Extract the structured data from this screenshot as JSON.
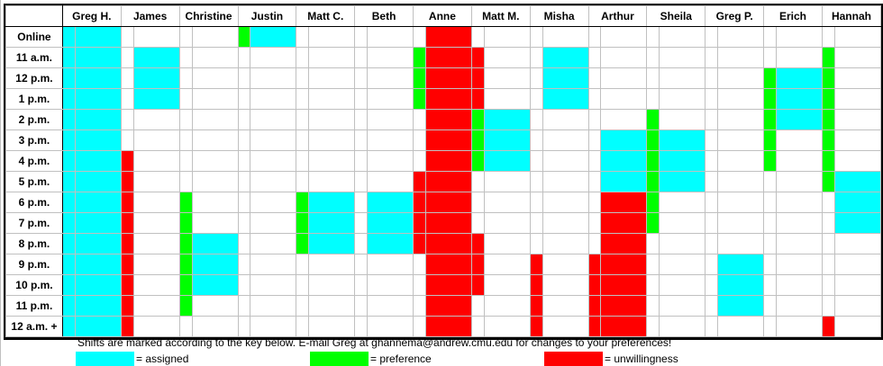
{
  "colors": {
    "assigned": "#00ffff",
    "preference": "#00ff00",
    "unwillingness": "#ff0000"
  },
  "people": [
    "Greg H.",
    "James",
    "Christine",
    "Justin",
    "Matt C.",
    "Beth",
    "Anne",
    "Matt M.",
    "Misha",
    "Arthur",
    "Sheila",
    "Greg P.",
    "Erich",
    "Hannah"
  ],
  "rows": [
    "Online",
    "11 a.m.",
    "12 p.m.",
    "1 p.m.",
    "2 p.m.",
    "3 p.m.",
    "4 p.m.",
    "5 p.m.",
    "6 p.m.",
    "7 p.m.",
    "8 p.m.",
    "9 p.m.",
    "10 p.m.",
    "11 p.m.",
    "12 a.m. +"
  ],
  "cells": {
    "Greg H.": [
      "cc",
      "cc",
      "cc",
      "cc",
      "cc",
      "cc",
      "cc",
      "cc",
      "cc",
      "cc",
      "cc",
      "cc",
      "cc",
      "cc",
      "cc"
    ],
    "James": [
      "..",
      ".c",
      ".c",
      ".c",
      "..",
      "..",
      "r.",
      "r.",
      "r.",
      "r.",
      "r.",
      "r.",
      "r.",
      "r.",
      "r."
    ],
    "Christine": [
      "..",
      "..",
      "..",
      "..",
      "..",
      "..",
      "..",
      "..",
      "g.",
      "g.",
      "gc",
      "gc",
      "gc",
      "g.",
      ".."
    ],
    "Justin": [
      "gc",
      "..",
      "..",
      "..",
      "..",
      "..",
      "..",
      "..",
      "..",
      "..",
      "..",
      "..",
      "..",
      "..",
      ".."
    ],
    "Matt C.": [
      "..",
      "..",
      "..",
      "..",
      "..",
      "..",
      "..",
      "..",
      "gc",
      "gc",
      "gc",
      "..",
      "..",
      "..",
      ".."
    ],
    "Beth": [
      "..",
      "..",
      "..",
      "..",
      "..",
      "..",
      "..",
      "..",
      ".c",
      ".c",
      ".c",
      "..",
      "..",
      "..",
      ".."
    ],
    "Anne": [
      ".r",
      "gr",
      "gr",
      "gr",
      ".r",
      ".r",
      ".r",
      "rr",
      "rr",
      "rr",
      "rr",
      ".r",
      ".r",
      ".r",
      ".r"
    ],
    "Matt M.": [
      "..",
      "r.",
      "r.",
      "r.",
      "gc",
      "gc",
      "gc",
      "..",
      "..",
      "..",
      "r.",
      "r.",
      "r.",
      "..",
      ".."
    ],
    "Misha": [
      "..",
      ".c",
      ".c",
      ".c",
      "..",
      "..",
      "..",
      "..",
      "..",
      "..",
      "..",
      "r.",
      "r.",
      "r.",
      "r."
    ],
    "Arthur": [
      "..",
      "..",
      "..",
      "..",
      "..",
      ".c",
      ".c",
      ".c",
      ".r",
      ".r",
      ".r",
      "rr",
      "rr",
      "rr",
      "rr"
    ],
    "Sheila": [
      "..",
      "..",
      "..",
      "..",
      "g.",
      "gc",
      "gc",
      "gc",
      "g.",
      "g.",
      "..",
      "..",
      "..",
      "..",
      ".."
    ],
    "Greg P.": [
      "..",
      "..",
      "..",
      "..",
      "..",
      "..",
      "..",
      "..",
      "..",
      "..",
      "..",
      ".c",
      ".c",
      ".c",
      ".."
    ],
    "Erich": [
      "..",
      "..",
      "gc",
      "gc",
      "gc",
      "g.",
      "g.",
      "..",
      "..",
      "..",
      "..",
      "..",
      "..",
      "..",
      ".."
    ],
    "Hannah": [
      "..",
      "g.",
      "g.",
      "g.",
      "g.",
      "g.",
      "g.",
      "gc",
      ".c",
      ".c",
      "..",
      "..",
      "..",
      "..",
      "r."
    ]
  },
  "footer": {
    "note": "Shifts are marked according to the key below.  E-mail Greg at ghannema@andrew.cmu.edu for changes to your preferences!",
    "legend": [
      {
        "key": "assigned",
        "label": "= assigned"
      },
      {
        "key": "preference",
        "label": "= preference"
      },
      {
        "key": "unwillingness",
        "label": "= unwillingness"
      }
    ]
  }
}
